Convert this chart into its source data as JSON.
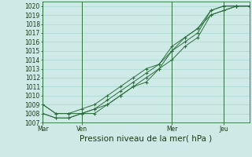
{
  "bg_color": "#ceeae6",
  "grid_major_color": "#a8d8d0",
  "grid_minor_color": "#daf0ec",
  "line_color": "#2d6e3e",
  "xlabel": "Pression niveau de la mer( hPa )",
  "xlabel_fontsize": 7.5,
  "tick_fontsize": 5.5,
  "ylim": [
    1007,
    1020.5
  ],
  "ytick_min": 1007,
  "ytick_max": 1020,
  "xtick_labels": [
    "Mar",
    "Ven",
    "Mer",
    "Jeu"
  ],
  "xtick_positions": [
    0,
    3,
    10,
    14
  ],
  "vline_positions": [
    0,
    3,
    10,
    14
  ],
  "series": [
    [
      1009,
      1008,
      1008,
      1008,
      1008.5,
      1009.5,
      1010.5,
      1011.5,
      1012.5,
      1013.5,
      1015,
      1016,
      1017,
      1019.5,
      1020,
      1020,
      1020
    ],
    [
      1008,
      1007.5,
      1007.5,
      1008,
      1008,
      1009,
      1010,
      1011,
      1012,
      1013,
      1014,
      1015.5,
      1016.5,
      1019,
      1019.5,
      1020,
      1020
    ],
    [
      1009,
      1008,
      1008,
      1008.5,
      1009,
      1010,
      1011,
      1012,
      1013,
      1013.5,
      1015.5,
      1016.5,
      1017.5,
      1019.5,
      1020,
      1020,
      1020
    ],
    [
      1008,
      1007.5,
      1007.5,
      1008,
      1008.5,
      1009,
      1010,
      1011,
      1011.5,
      1013,
      1015,
      1016.5,
      1017.5,
      1019,
      1019.5,
      1020,
      1020
    ]
  ],
  "n_points": 17,
  "spine_color": "#2d6e3e"
}
